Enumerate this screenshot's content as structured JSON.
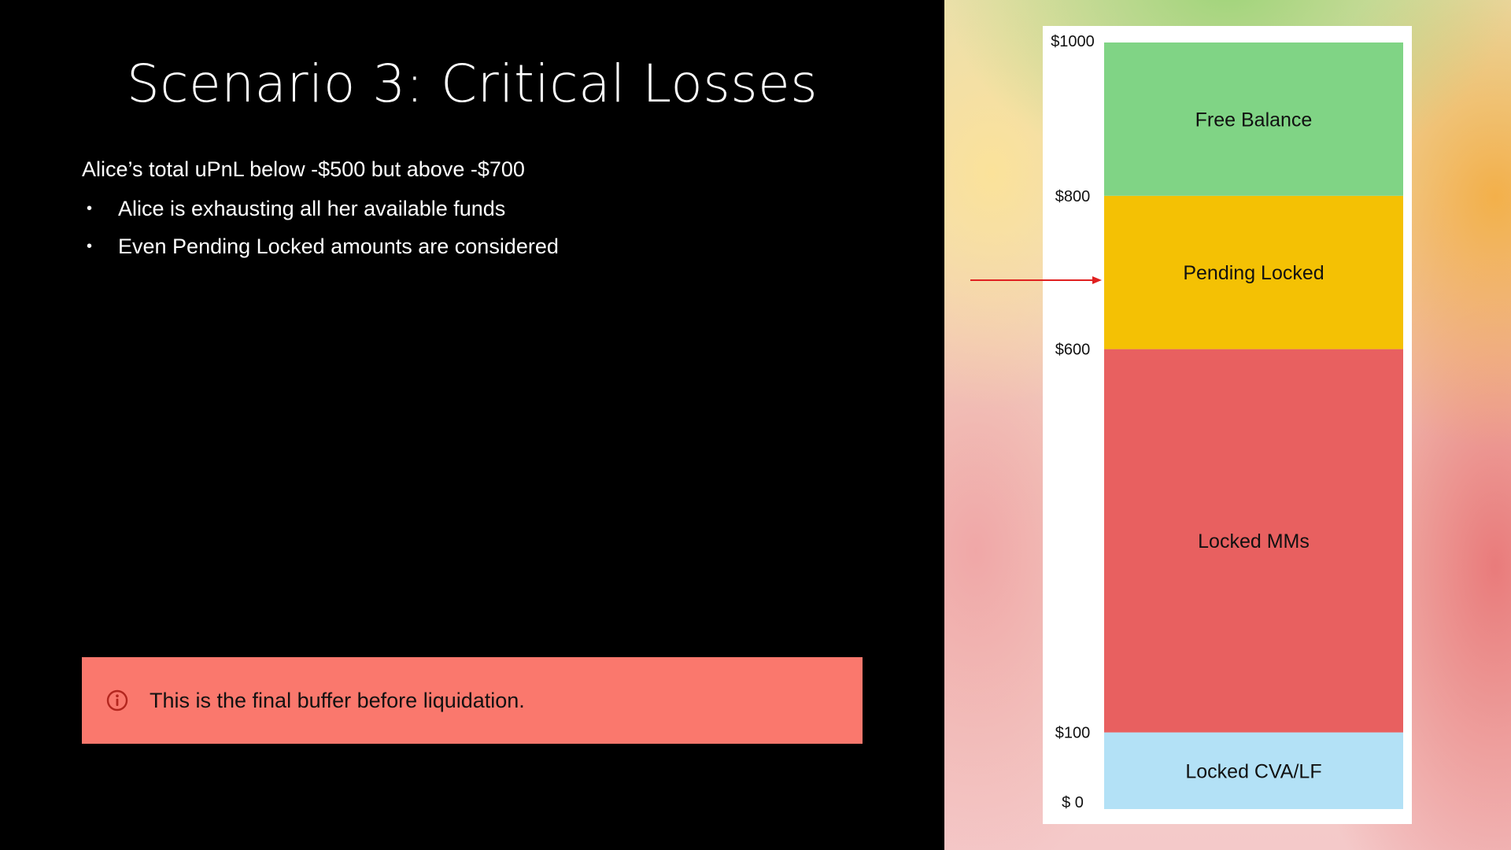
{
  "slide": {
    "title": "Scenario 3: Critical Losses",
    "intro": "Alice’s total uPnL below -$500 but above -$700",
    "bullets": [
      "Alice is exhausting all her available funds",
      "Even Pending Locked amounts are considered"
    ],
    "bullet_glyph": "•",
    "callout": {
      "text": "This is the final buffer before liquidation.",
      "icon": "info-circle-icon",
      "background": "#fa786d",
      "icon_color": "#b3261e"
    }
  },
  "chart_data": {
    "type": "bar",
    "orientation": "stacked-vertical",
    "ylim": [
      0,
      1000
    ],
    "tick_labels": [
      "$1000",
      "$800",
      "$600",
      "$100",
      "$ 0"
    ],
    "ticks": [
      1000,
      800,
      600,
      100,
      0
    ],
    "segments": [
      {
        "name": "Locked CVA/LF",
        "from": 0,
        "to": 100,
        "color": "#b3e1f6"
      },
      {
        "name": "Locked MMs",
        "from": 100,
        "to": 600,
        "color": "#e86060"
      },
      {
        "name": "Pending Locked",
        "from": 600,
        "to": 800,
        "color": "#f4c104"
      },
      {
        "name": "Free Balance",
        "from": 800,
        "to": 1000,
        "color": "#80d485"
      }
    ],
    "marker": {
      "value": 690,
      "direction": "pointing-right",
      "color": "#e02020"
    }
  }
}
